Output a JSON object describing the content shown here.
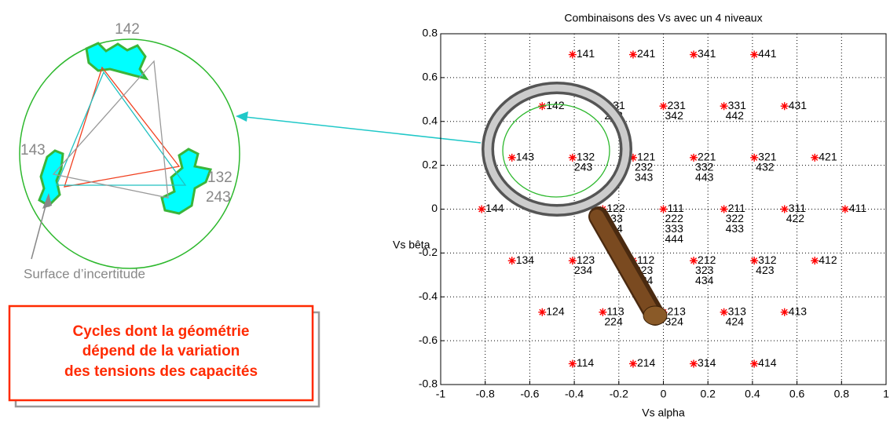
{
  "chart_data": {
    "type": "scatter",
    "title": "Combinaisons des Vs avec un 4 niveaux",
    "x_label": "Vs alpha",
    "y_label": "Vs bêta",
    "xlim": [
      -1,
      1
    ],
    "ylim": [
      -0.8,
      0.8
    ],
    "xticks": [
      -1,
      -0.8,
      -0.6,
      -0.4,
      -0.2,
      0,
      0.2,
      0.4,
      0.6,
      0.8,
      1
    ],
    "yticks": [
      -0.8,
      -0.6,
      -0.4,
      -0.2,
      0,
      0.2,
      0.4,
      0.6,
      0.8
    ],
    "grid": true,
    "series": [
      {
        "color": "#ff0000",
        "x": [
          -0.408,
          -0.136,
          0.136,
          0.408,
          -0.544,
          -0.272,
          0,
          0.272,
          0.544,
          -0.68,
          -0.408,
          -0.136,
          0.136,
          0.408,
          0.68,
          -0.816,
          -0.544,
          -0.272,
          0,
          0.272,
          0.544,
          0.816,
          -0.68,
          -0.408,
          -0.136,
          0.136,
          0.408,
          0.68,
          -0.544,
          -0.272,
          0,
          0.272,
          0.544,
          -0.408,
          -0.136,
          0.136,
          0.408
        ],
        "values": [
          0.705,
          0.705,
          0.705,
          0.705,
          0.47,
          0.47,
          0.47,
          0.47,
          0.47,
          0.235,
          0.235,
          0.235,
          0.235,
          0.235,
          0.235,
          0,
          0,
          0,
          0,
          0,
          0,
          0,
          -0.235,
          -0.235,
          -0.235,
          -0.235,
          -0.235,
          -0.235,
          -0.47,
          -0.47,
          -0.47,
          -0.47,
          -0.47,
          -0.705,
          -0.705,
          -0.705,
          -0.705
        ],
        "point_labels": [
          [
            "141"
          ],
          [
            "241"
          ],
          [
            "341"
          ],
          [
            "441"
          ],
          [
            "142"
          ],
          [
            "131",
            "242"
          ],
          [
            "231",
            "342"
          ],
          [
            "331",
            "442"
          ],
          [
            "431"
          ],
          [
            "143"
          ],
          [
            "132",
            "243"
          ],
          [
            "121",
            "232",
            "343"
          ],
          [
            "221",
            "332",
            "443"
          ],
          [
            "321",
            "432"
          ],
          [
            "421"
          ],
          [
            "144"
          ],
          [
            "133"
          ],
          [
            "122",
            "233",
            "344"
          ],
          [
            "111",
            "222",
            "333",
            "444"
          ],
          [
            "211",
            "322",
            "433"
          ],
          [
            "311",
            "422"
          ],
          [
            "411"
          ],
          [
            "134"
          ],
          [
            "123",
            "234"
          ],
          [
            "112",
            "223",
            "334"
          ],
          [
            "212",
            "323",
            "434"
          ],
          [
            "312",
            "423"
          ],
          [
            "412"
          ],
          [
            "124"
          ],
          [
            "113",
            "224"
          ],
          [
            "213",
            "324"
          ],
          [
            "313",
            "424"
          ],
          [
            "413"
          ],
          [
            "114"
          ],
          [
            "214"
          ],
          [
            "314"
          ],
          [
            "414"
          ]
        ]
      }
    ]
  },
  "diagram": {
    "vertex_labels": [
      "142",
      "143",
      "132",
      "243"
    ],
    "surface_label": "Surface d’incertitude",
    "note": [
      "Cycles dont la géométrie",
      "dépend de la variation",
      "des tensions des capacités"
    ]
  }
}
